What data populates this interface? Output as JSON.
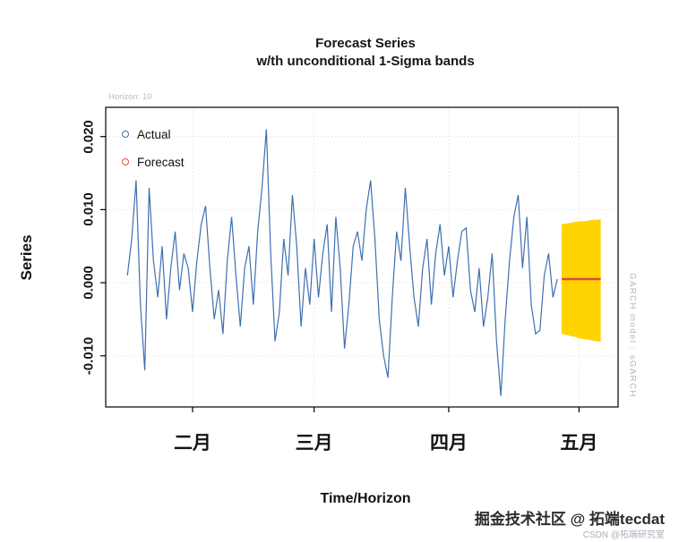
{
  "title": {
    "line1": "Forecast Series",
    "line2": "w/th unconditional 1-Sigma bands"
  },
  "annotations": {
    "horizon_note": "Horizon: 10",
    "model_label": "GARCH model : sGARCH"
  },
  "legend": [
    {
      "label": "Actual",
      "color": "#3e6fb0"
    },
    {
      "label": "Forecast",
      "color": "#e8483c"
    }
  ],
  "watermark": {
    "main": "掘金技术社区 @ 拓端tecdat",
    "sub": "CSDN @拓端研究室"
  },
  "chart_data": {
    "type": "line",
    "title": "Forecast Series w/th unconditional 1-Sigma bands",
    "xlabel": "Time/Horizon",
    "ylabel": "Series",
    "xlim": [
      -5,
      113
    ],
    "ylim": [
      -0.017,
      0.024
    ],
    "grid": true,
    "legend_position": "top-left",
    "yticks": [
      {
        "value": 0.02,
        "label": "0.020"
      },
      {
        "value": 0.01,
        "label": "0.010"
      },
      {
        "value": 0.0,
        "label": "0.000"
      },
      {
        "value": -0.01,
        "label": "-0.010"
      }
    ],
    "xticks": [
      {
        "index": 15,
        "label": "二月"
      },
      {
        "index": 43,
        "label": "三月"
      },
      {
        "index": 74,
        "label": "四月"
      },
      {
        "index": 104,
        "label": "五月"
      }
    ],
    "series": [
      {
        "name": "Actual",
        "color": "#3e6fb0",
        "line_width": 1.2,
        "x_start_index": 0,
        "values": [
          0.001,
          0.006,
          0.014,
          -0.003,
          -0.012,
          0.013,
          0.003,
          -0.002,
          0.005,
          -0.005,
          0.002,
          0.007,
          -0.001,
          0.004,
          0.002,
          -0.004,
          0.003,
          0.008,
          0.0105,
          0.002,
          -0.005,
          -0.001,
          -0.007,
          0.003,
          0.009,
          0.001,
          -0.006,
          0.002,
          0.005,
          -0.003,
          0.007,
          0.013,
          0.021,
          0.004,
          -0.008,
          -0.004,
          0.006,
          0.001,
          0.012,
          0.005,
          -0.006,
          0.002,
          -0.003,
          0.006,
          -0.002,
          0.004,
          0.008,
          -0.004,
          0.009,
          0.002,
          -0.009,
          -0.003,
          0.005,
          0.007,
          0.003,
          0.01,
          0.014,
          0.006,
          -0.005,
          -0.01,
          -0.013,
          -0.002,
          0.007,
          0.003,
          0.013,
          0.005,
          -0.002,
          -0.006,
          0.002,
          0.006,
          -0.003,
          0.004,
          0.008,
          0.001,
          0.005,
          -0.002,
          0.003,
          0.007,
          0.0075,
          -0.001,
          -0.004,
          0.002,
          -0.006,
          -0.002,
          0.004,
          -0.008,
          -0.0155,
          -0.005,
          0.003,
          0.009,
          0.012,
          0.002,
          0.009,
          -0.003,
          -0.007,
          -0.0065,
          0.001,
          0.004,
          -0.002,
          0.0005
        ]
      },
      {
        "name": "Forecast",
        "color": "#e8483c",
        "line_width": 2.6,
        "x_start_index": 100,
        "values": [
          0.0005,
          0.0005,
          0.0005,
          0.0005,
          0.0005,
          0.0005,
          0.0005,
          0.0005,
          0.0005,
          0.0005
        ]
      }
    ],
    "sigma_band": {
      "name": "unconditional 1-sigma band",
      "color": "#ffd400",
      "x_start_index": 100,
      "upper": [
        0.008,
        0.0081,
        0.0082,
        0.0083,
        0.0084,
        0.0084,
        0.0085,
        0.0086,
        0.0086,
        0.0087
      ],
      "lower": [
        -0.007,
        -0.0071,
        -0.0073,
        -0.0074,
        -0.0076,
        -0.0077,
        -0.0078,
        -0.0079,
        -0.008,
        -0.0081
      ]
    }
  }
}
